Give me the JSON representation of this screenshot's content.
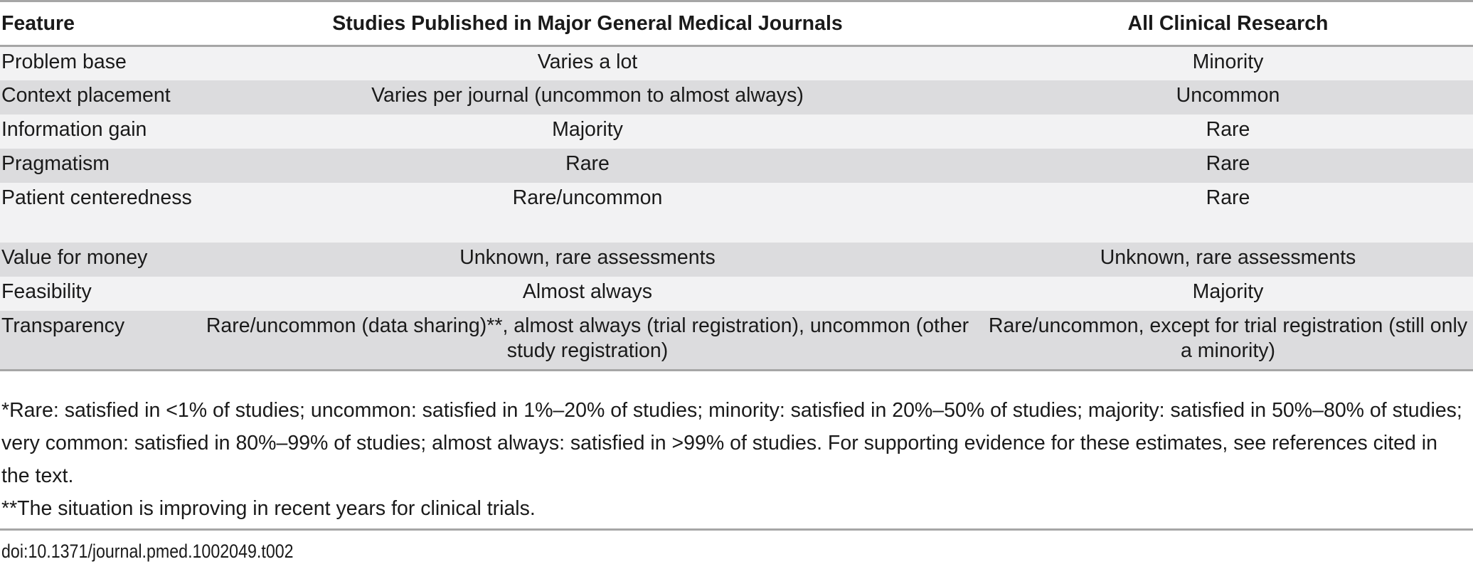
{
  "table": {
    "headers": [
      "Feature",
      "Studies Published in Major General Medical Journals",
      "All Clinical Research"
    ],
    "rows": [
      [
        "Problem base",
        "Varies a lot",
        "Minority"
      ],
      [
        "Context placement",
        "Varies per journal (uncommon to almost always)",
        "Uncommon"
      ],
      [
        "Information gain",
        "Majority",
        "Rare"
      ],
      [
        "Pragmatism",
        "Rare",
        "Rare"
      ],
      [
        "Patient centeredness",
        "Rare/uncommon",
        "Rare"
      ],
      [
        "Value for money",
        "Unknown, rare assessments",
        "Unknown, rare assessments"
      ],
      [
        "Feasibility",
        "Almost always",
        "Majority"
      ],
      [
        "Transparency",
        "Rare/uncommon (data sharing)**, almost always (trial registration), uncommon (other study registration)",
        "Rare/uncommon, except for trial registration (still only a minority)"
      ]
    ]
  },
  "footnotes": [
    "*Rare: satisfied in <1% of studies; uncommon: satisfied in 1%–20% of studies; minority: satisfied in 20%–50% of studies; majority: satisfied in 50%–80% of studies; very common: satisfied in 80%–99% of studies; almost always: satisfied in >99% of studies. For supporting evidence for these estimates, see references cited in the text.",
    "**The situation is improving in recent years for clinical trials."
  ],
  "doi": "doi:10.1371/journal.pmed.1002049.t002"
}
